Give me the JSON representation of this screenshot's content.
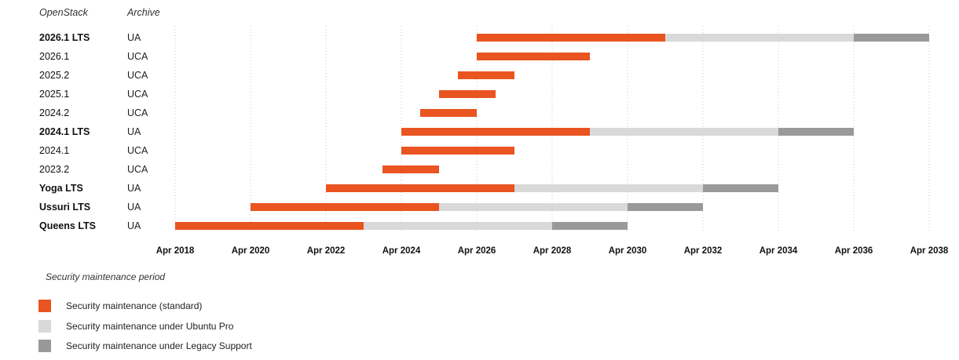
{
  "headers": {
    "openstack": "OpenStack",
    "archive": "Archive"
  },
  "chart_data": {
    "type": "bar",
    "subtype": "gantt",
    "x_axis": {
      "tick_labels": [
        "Apr 2018",
        "Apr 2020",
        "Apr 2022",
        "Apr 2024",
        "Apr 2026",
        "Apr 2028",
        "Apr 2030",
        "Apr 2032",
        "Apr 2034",
        "Apr 2036",
        "Apr 2038"
      ],
      "range": [
        "Apr 2018",
        "Apr 2038"
      ],
      "label": "Security maintenance period"
    },
    "grid": "vertical dotted",
    "rows": [
      {
        "release": "2026.1 LTS",
        "archive": "UA",
        "bold": true,
        "segments": [
          {
            "series": "standard",
            "start": "Apr 2026",
            "end": "Apr 2031"
          },
          {
            "series": "pro",
            "start": "Apr 2031",
            "end": "Apr 2036"
          },
          {
            "series": "legacy",
            "start": "Apr 2036",
            "end": "Apr 2038"
          }
        ]
      },
      {
        "release": "2026.1",
        "archive": "UCA",
        "bold": false,
        "segments": [
          {
            "series": "standard",
            "start": "Apr 2026",
            "end": "Apr 2029"
          }
        ]
      },
      {
        "release": "2025.2",
        "archive": "UCA",
        "bold": false,
        "segments": [
          {
            "series": "standard",
            "start": "Oct 2025",
            "end": "Apr 2027"
          }
        ]
      },
      {
        "release": "2025.1",
        "archive": "UCA",
        "bold": false,
        "segments": [
          {
            "series": "standard",
            "start": "Apr 2025",
            "end": "Oct 2026"
          }
        ]
      },
      {
        "release": "2024.2",
        "archive": "UCA",
        "bold": false,
        "segments": [
          {
            "series": "standard",
            "start": "Oct 2024",
            "end": "Apr 2026"
          }
        ]
      },
      {
        "release": "2024.1 LTS",
        "archive": "UA",
        "bold": true,
        "segments": [
          {
            "series": "standard",
            "start": "Apr 2024",
            "end": "Apr 2029"
          },
          {
            "series": "pro",
            "start": "Apr 2029",
            "end": "Apr 2034"
          },
          {
            "series": "legacy",
            "start": "Apr 2034",
            "end": "Apr 2036"
          }
        ]
      },
      {
        "release": "2024.1",
        "archive": "UCA",
        "bold": false,
        "segments": [
          {
            "series": "standard",
            "start": "Apr 2024",
            "end": "Apr 2027"
          }
        ]
      },
      {
        "release": "2023.2",
        "archive": "UCA",
        "bold": false,
        "segments": [
          {
            "series": "standard",
            "start": "Oct 2023",
            "end": "Apr 2025"
          }
        ]
      },
      {
        "release": "Yoga LTS",
        "archive": "UA",
        "bold": true,
        "segments": [
          {
            "series": "standard",
            "start": "Apr 2022",
            "end": "Apr 2027"
          },
          {
            "series": "pro",
            "start": "Apr 2027",
            "end": "Apr 2032"
          },
          {
            "series": "legacy",
            "start": "Apr 2032",
            "end": "Apr 2034"
          }
        ]
      },
      {
        "release": "Ussuri LTS",
        "archive": "UA",
        "bold": true,
        "segments": [
          {
            "series": "standard",
            "start": "Apr 2020",
            "end": "Apr 2025"
          },
          {
            "series": "pro",
            "start": "Apr 2025",
            "end": "Apr 2030"
          },
          {
            "series": "legacy",
            "start": "Apr 2030",
            "end": "Apr 2032"
          }
        ]
      },
      {
        "release": "Queens LTS",
        "archive": "UA",
        "bold": true,
        "segments": [
          {
            "series": "standard",
            "start": "Apr 2018",
            "end": "Apr 2023"
          },
          {
            "series": "pro",
            "start": "Apr 2023",
            "end": "Apr 2028"
          },
          {
            "series": "legacy",
            "start": "Apr 2028",
            "end": "Apr 2030"
          }
        ]
      }
    ],
    "series": [
      {
        "key": "standard",
        "name": "Security maintenance (standard)",
        "color": "#E95420"
      },
      {
        "key": "pro",
        "name": "Security maintenance under Ubuntu Pro",
        "color": "#D9D9D9"
      },
      {
        "key": "legacy",
        "name": "Security maintenance under Legacy Support",
        "color": "#999999"
      }
    ]
  }
}
